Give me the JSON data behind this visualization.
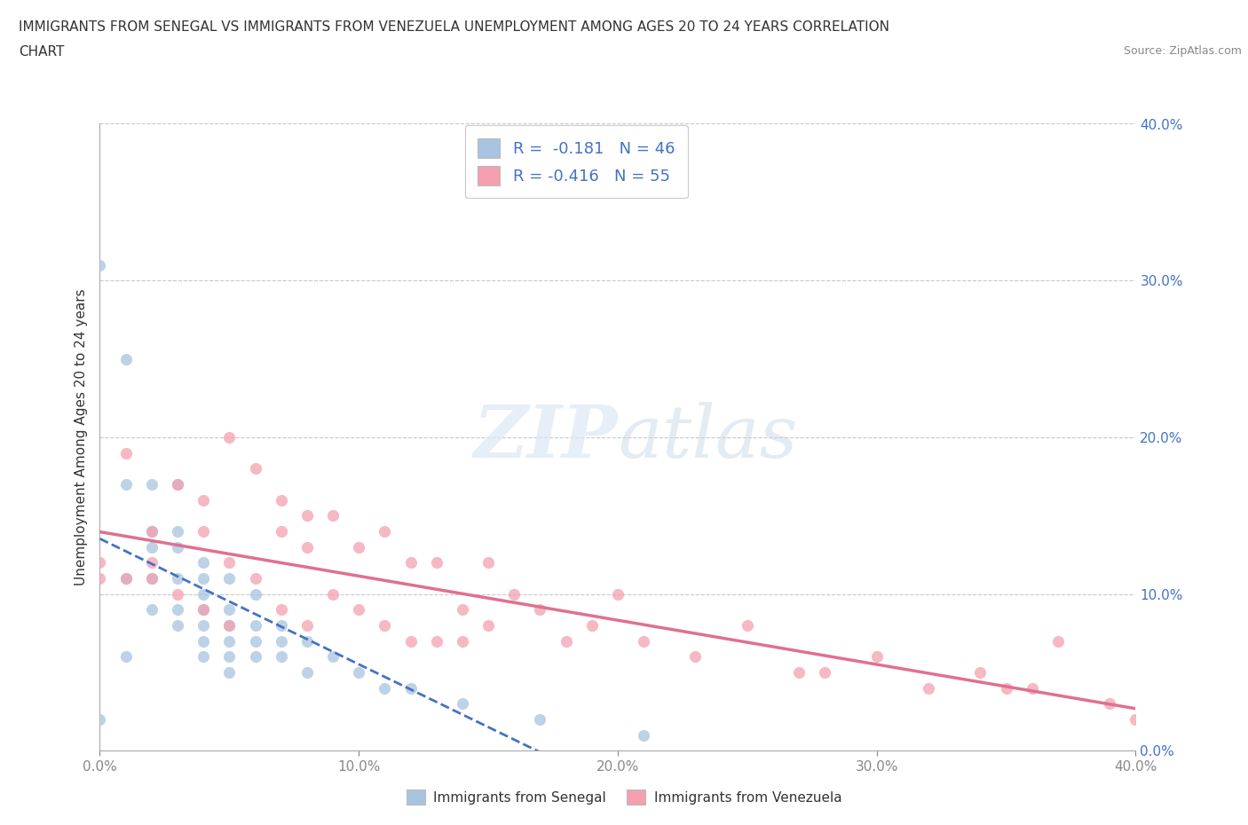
{
  "title_line1": "IMMIGRANTS FROM SENEGAL VS IMMIGRANTS FROM VENEZUELA UNEMPLOYMENT AMONG AGES 20 TO 24 YEARS CORRELATION",
  "title_line2": "CHART",
  "source": "Source: ZipAtlas.com",
  "ylabel": "Unemployment Among Ages 20 to 24 years",
  "xlim": [
    0.0,
    0.4
  ],
  "ylim": [
    0.0,
    0.4
  ],
  "xticks": [
    0.0,
    0.1,
    0.2,
    0.3,
    0.4
  ],
  "yticks": [
    0.0,
    0.1,
    0.2,
    0.3,
    0.4
  ],
  "color_senegal": "#a8c4e0",
  "color_venezuela": "#f4a0b0",
  "color_blue": "#4472c4",
  "color_line_venezuela": "#e07090",
  "r_senegal": -0.181,
  "n_senegal": 46,
  "r_venezuela": -0.416,
  "n_venezuela": 55,
  "senegal_x": [
    0.0,
    0.0,
    0.01,
    0.01,
    0.01,
    0.01,
    0.02,
    0.02,
    0.02,
    0.02,
    0.02,
    0.03,
    0.03,
    0.03,
    0.03,
    0.03,
    0.03,
    0.04,
    0.04,
    0.04,
    0.04,
    0.04,
    0.04,
    0.04,
    0.05,
    0.05,
    0.05,
    0.05,
    0.05,
    0.05,
    0.06,
    0.06,
    0.06,
    0.06,
    0.07,
    0.07,
    0.07,
    0.08,
    0.08,
    0.09,
    0.1,
    0.11,
    0.12,
    0.14,
    0.17,
    0.21
  ],
  "senegal_y": [
    0.31,
    0.02,
    0.25,
    0.17,
    0.11,
    0.06,
    0.17,
    0.14,
    0.13,
    0.11,
    0.09,
    0.17,
    0.14,
    0.13,
    0.11,
    0.09,
    0.08,
    0.12,
    0.11,
    0.1,
    0.09,
    0.08,
    0.07,
    0.06,
    0.11,
    0.09,
    0.08,
    0.07,
    0.06,
    0.05,
    0.1,
    0.08,
    0.07,
    0.06,
    0.08,
    0.07,
    0.06,
    0.07,
    0.05,
    0.06,
    0.05,
    0.04,
    0.04,
    0.03,
    0.02,
    0.01
  ],
  "venezuela_x": [
    0.0,
    0.0,
    0.01,
    0.01,
    0.02,
    0.02,
    0.02,
    0.03,
    0.03,
    0.04,
    0.04,
    0.04,
    0.05,
    0.05,
    0.05,
    0.06,
    0.06,
    0.07,
    0.07,
    0.07,
    0.08,
    0.08,
    0.08,
    0.09,
    0.09,
    0.1,
    0.1,
    0.11,
    0.11,
    0.12,
    0.12,
    0.13,
    0.13,
    0.14,
    0.14,
    0.15,
    0.15,
    0.16,
    0.17,
    0.18,
    0.19,
    0.2,
    0.21,
    0.23,
    0.25,
    0.27,
    0.28,
    0.3,
    0.32,
    0.34,
    0.35,
    0.36,
    0.37,
    0.39,
    0.4
  ],
  "venezuela_y": [
    0.12,
    0.11,
    0.19,
    0.11,
    0.14,
    0.12,
    0.11,
    0.17,
    0.1,
    0.16,
    0.14,
    0.09,
    0.2,
    0.12,
    0.08,
    0.18,
    0.11,
    0.16,
    0.14,
    0.09,
    0.15,
    0.13,
    0.08,
    0.15,
    0.1,
    0.13,
    0.09,
    0.14,
    0.08,
    0.12,
    0.07,
    0.12,
    0.07,
    0.09,
    0.07,
    0.12,
    0.08,
    0.1,
    0.09,
    0.07,
    0.08,
    0.1,
    0.07,
    0.06,
    0.08,
    0.05,
    0.05,
    0.06,
    0.04,
    0.05,
    0.04,
    0.04,
    0.07,
    0.03,
    0.02
  ],
  "watermark_zip": "ZIP",
  "watermark_atlas": "atlas",
  "legend_label_senegal": "Immigrants from Senegal",
  "legend_label_venezuela": "Immigrants from Venezuela",
  "grid_color": "#c8c8c8",
  "background_color": "#ffffff"
}
